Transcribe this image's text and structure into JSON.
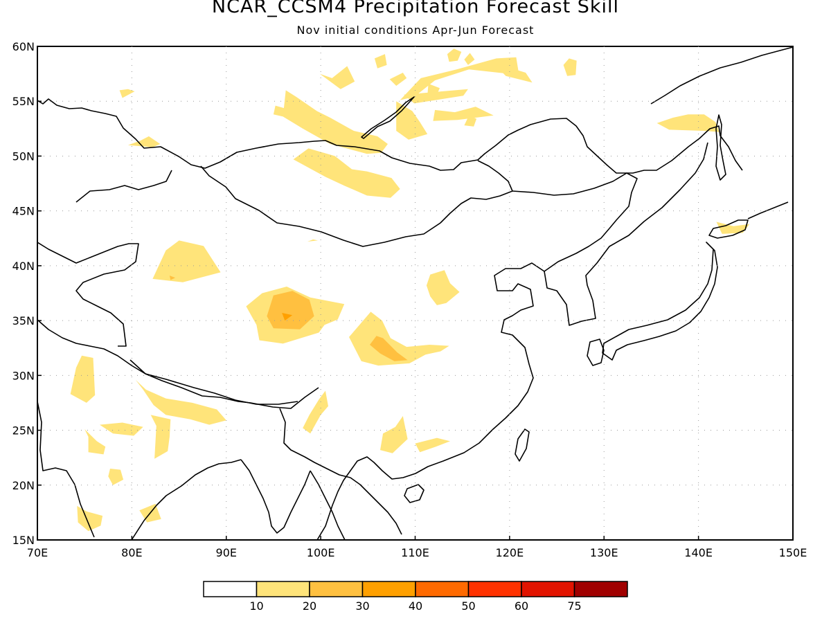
{
  "title": "NCAR_CCSM4 Precipitation Forecast Skill",
  "subtitle": "Nov initial conditions  Apr-Jun Forecast",
  "map": {
    "lon_range": [
      70,
      150
    ],
    "lat_range": [
      15,
      60
    ],
    "lon_labels": [
      "70E",
      "80E",
      "90E",
      "100E",
      "110E",
      "120E",
      "130E",
      "140E",
      "150E"
    ],
    "lat_labels": [
      "15N",
      "20N",
      "25N",
      "30N",
      "35N",
      "40N",
      "45N",
      "50N",
      "55N",
      "60N"
    ],
    "grid": "dotted"
  },
  "legend": {
    "labels": [
      "10",
      "20",
      "30",
      "40",
      "50",
      "60",
      "75"
    ],
    "colors": [
      "#ffffff",
      "#ffe47a",
      "#ffc040",
      "#ffa000",
      "#ff6a00",
      "#ff3200",
      "#e21400",
      "#a00000"
    ]
  },
  "skill_regions": [
    {
      "level": 1,
      "pts": [
        [
          87.6,
          41.8
        ],
        [
          89.4,
          39.4
        ],
        [
          85.4,
          38.5
        ],
        [
          82.2,
          38.8
        ],
        [
          83.6,
          41.4
        ],
        [
          85.0,
          42.3
        ]
      ]
    },
    {
      "level": 2,
      "pts": [
        [
          84.0,
          39.1
        ],
        [
          84.6,
          38.9
        ],
        [
          84.1,
          38.7
        ]
      ]
    },
    {
      "level": 1,
      "pts": [
        [
          93.8,
          37.5
        ],
        [
          96.4,
          38.1
        ],
        [
          98.9,
          37.1
        ],
        [
          102.5,
          36.5
        ],
        [
          101.8,
          35.1
        ],
        [
          100.4,
          34.6
        ],
        [
          99.8,
          33.9
        ],
        [
          96.0,
          32.9
        ],
        [
          93.5,
          33.2
        ],
        [
          93.2,
          34.6
        ],
        [
          92.1,
          36.3
        ]
      ]
    },
    {
      "level": 2,
      "pts": [
        [
          95.0,
          37.3
        ],
        [
          97.0,
          37.7
        ],
        [
          98.8,
          36.9
        ],
        [
          99.3,
          35.4
        ],
        [
          97.8,
          34.2
        ],
        [
          95.0,
          34.3
        ],
        [
          94.3,
          35.4
        ]
      ]
    },
    {
      "level": 3,
      "pts": [
        [
          95.9,
          35.7
        ],
        [
          97.0,
          35.5
        ],
        [
          96.2,
          35.0
        ]
      ]
    },
    {
      "level": 1,
      "pts": [
        [
          105.3,
          35.8
        ],
        [
          106.5,
          35.0
        ],
        [
          107.4,
          33.4
        ],
        [
          109.1,
          32.6
        ],
        [
          111.5,
          32.8
        ],
        [
          113.6,
          32.7
        ],
        [
          112.7,
          32.2
        ],
        [
          111.1,
          31.9
        ],
        [
          109.4,
          31.1
        ],
        [
          106.1,
          30.9
        ],
        [
          104.3,
          31.3
        ],
        [
          103.0,
          33.5
        ]
      ]
    },
    {
      "level": 2,
      "pts": [
        [
          105.9,
          33.6
        ],
        [
          106.6,
          33.4
        ],
        [
          108.1,
          32.1
        ],
        [
          109.2,
          31.4
        ],
        [
          107.8,
          31.3
        ],
        [
          106.3,
          32.0
        ],
        [
          105.2,
          32.8
        ]
      ]
    },
    {
      "level": 1,
      "pts": [
        [
          111.6,
          39.2
        ],
        [
          113.1,
          39.6
        ],
        [
          113.7,
          38.4
        ],
        [
          114.7,
          37.6
        ],
        [
          113.3,
          36.6
        ],
        [
          112.3,
          36.4
        ],
        [
          111.6,
          37.2
        ],
        [
          111.2,
          38.2
        ]
      ]
    },
    {
      "level": 1,
      "pts": [
        [
          118.6,
          58.2
        ],
        [
          119.6,
          57.3
        ],
        [
          122.4,
          56.7
        ],
        [
          121.7,
          57.6
        ],
        [
          118.0,
          58.6
        ]
      ]
    },
    {
      "level": 1,
      "pts": [
        [
          108.4,
          55.1
        ],
        [
          110.6,
          57.1
        ],
        [
          114.4,
          57.9
        ],
        [
          118.6,
          58.9
        ],
        [
          120.7,
          59.0
        ],
        [
          121.0,
          57.4
        ],
        [
          115.7,
          57.9
        ],
        [
          112.1,
          56.9
        ],
        [
          109.9,
          55.4
        ]
      ]
    },
    {
      "level": 1,
      "pts": [
        [
          112.1,
          54.2
        ],
        [
          114.2,
          54.0
        ],
        [
          116.4,
          54.5
        ],
        [
          118.3,
          53.7
        ],
        [
          114.5,
          53.3
        ],
        [
          111.9,
          53.2
        ]
      ]
    },
    {
      "level": 1,
      "pts": [
        [
          105.7,
          58.9
        ],
        [
          106.8,
          59.3
        ],
        [
          107.0,
          58.3
        ],
        [
          106.0,
          58.0
        ]
      ]
    },
    {
      "level": 1,
      "pts": [
        [
          113.4,
          59.3
        ],
        [
          114.1,
          59.8
        ],
        [
          114.9,
          59.5
        ],
        [
          114.5,
          58.7
        ],
        [
          113.6,
          58.6
        ]
      ]
    },
    {
      "level": 1,
      "pts": [
        [
          107.3,
          57.0
        ],
        [
          108.7,
          57.6
        ],
        [
          109.1,
          57.1
        ],
        [
          108.0,
          56.4
        ]
      ]
    },
    {
      "level": 1,
      "pts": [
        [
          115.2,
          58.8
        ],
        [
          115.8,
          59.4
        ],
        [
          116.3,
          58.8
        ],
        [
          115.6,
          58.3
        ]
      ]
    },
    {
      "level": 1,
      "pts": [
        [
          108.8,
          55.6
        ],
        [
          115.6,
          56.1
        ],
        [
          115.1,
          55.5
        ],
        [
          109.9,
          54.8
        ]
      ]
    },
    {
      "level": 1,
      "pts": [
        [
          108.0,
          55.0
        ],
        [
          109.7,
          54.1
        ],
        [
          110.5,
          53.1
        ],
        [
          111.3,
          52.0
        ],
        [
          109.3,
          51.5
        ],
        [
          108.0,
          52.3
        ]
      ]
    },
    {
      "level": 1,
      "pts": [
        [
          95.0,
          53.8
        ],
        [
          95.2,
          54.6
        ],
        [
          96.4,
          54.3
        ],
        [
          96.0,
          53.6
        ]
      ]
    },
    {
      "level": 1,
      "pts": [
        [
          115.2,
          52.8
        ],
        [
          115.7,
          53.7
        ],
        [
          116.5,
          53.4
        ],
        [
          116.2,
          52.7
        ]
      ]
    },
    {
      "level": 1,
      "pts": [
        [
          111.3,
          55.5
        ],
        [
          111.4,
          56.6
        ],
        [
          112.6,
          56.2
        ],
        [
          112.2,
          55.4
        ]
      ]
    },
    {
      "level": 1,
      "pts": [
        [
          125.7,
          58.3
        ],
        [
          126.3,
          58.9
        ],
        [
          127.1,
          58.7
        ],
        [
          127.0,
          57.4
        ],
        [
          126.1,
          57.3
        ]
      ]
    },
    {
      "level": 1,
      "pts": [
        [
          78.7,
          56.0
        ],
        [
          79.6,
          56.1
        ],
        [
          80.3,
          55.9
        ],
        [
          79.0,
          55.3
        ]
      ]
    },
    {
      "level": 1,
      "pts": [
        [
          79.6,
          51.0
        ],
        [
          80.9,
          51.4
        ],
        [
          81.8,
          51.8
        ],
        [
          83.0,
          51.1
        ],
        [
          82.2,
          50.8
        ]
      ]
    },
    {
      "level": 1,
      "pts": [
        [
          96.3,
          56.0
        ],
        [
          97.4,
          55.4
        ],
        [
          99.6,
          54.1
        ],
        [
          101.0,
          53.5
        ],
        [
          103.5,
          52.3
        ],
        [
          106.0,
          51.8
        ],
        [
          107.1,
          51.1
        ],
        [
          106.4,
          50.3
        ],
        [
          104.9,
          50.2
        ],
        [
          101.0,
          51.1
        ],
        [
          98.1,
          52.5
        ],
        [
          96.0,
          53.6
        ]
      ]
    },
    {
      "level": 1,
      "pts": [
        [
          97.1,
          49.7
        ],
        [
          98.7,
          50.7
        ],
        [
          101.5,
          50.0
        ],
        [
          103.3,
          48.8
        ],
        [
          104.9,
          48.6
        ],
        [
          107.5,
          48.0
        ],
        [
          108.4,
          47.0
        ],
        [
          107.4,
          46.2
        ],
        [
          104.9,
          46.4
        ],
        [
          102.5,
          47.3
        ],
        [
          100.5,
          48.1
        ]
      ]
    },
    {
      "level": 1,
      "pts": [
        [
          99.9,
          57.5
        ],
        [
          101.2,
          57.1
        ],
        [
          102.8,
          58.2
        ],
        [
          103.6,
          56.8
        ],
        [
          102.1,
          56.1
        ]
      ]
    },
    {
      "level": 1,
      "pts": [
        [
          135.6,
          53.0
        ],
        [
          137.3,
          53.5
        ],
        [
          138.9,
          53.8
        ],
        [
          140.6,
          53.8
        ],
        [
          141.8,
          53.1
        ],
        [
          142.2,
          52.2
        ],
        [
          140.5,
          52.3
        ],
        [
          136.9,
          52.4
        ]
      ]
    },
    {
      "level": 1,
      "pts": [
        [
          141.9,
          44.0
        ],
        [
          143.7,
          43.6
        ],
        [
          145.4,
          43.8
        ],
        [
          144.7,
          43.0
        ],
        [
          142.5,
          42.9
        ]
      ]
    },
    {
      "level": 1,
      "pts": [
        [
          74.1,
          30.7
        ],
        [
          74.7,
          31.8
        ],
        [
          75.9,
          31.6
        ],
        [
          76.1,
          28.2
        ],
        [
          75.2,
          27.5
        ],
        [
          73.5,
          28.3
        ]
      ]
    },
    {
      "level": 1,
      "pts": [
        [
          80.4,
          29.6
        ],
        [
          81.5,
          28.7
        ],
        [
          83.6,
          27.9
        ],
        [
          86.4,
          27.5
        ],
        [
          89.0,
          26.9
        ],
        [
          90.0,
          25.9
        ],
        [
          88.2,
          25.5
        ],
        [
          86.2,
          26.0
        ],
        [
          83.6,
          26.4
        ],
        [
          82.3,
          27.3
        ],
        [
          81.2,
          28.7
        ]
      ]
    },
    {
      "level": 1,
      "pts": [
        [
          82.0,
          26.4
        ],
        [
          84.1,
          26.0
        ],
        [
          84.0,
          24.4
        ],
        [
          83.8,
          23.1
        ],
        [
          82.4,
          22.4
        ],
        [
          82.6,
          25.4
        ]
      ]
    },
    {
      "level": 1,
      "pts": [
        [
          76.6,
          25.5
        ],
        [
          79.0,
          25.7
        ],
        [
          81.2,
          25.3
        ],
        [
          80.2,
          24.5
        ],
        [
          78.0,
          24.7
        ]
      ]
    },
    {
      "level": 1,
      "pts": [
        [
          75.0,
          25.1
        ],
        [
          76.3,
          24.0
        ],
        [
          77.2,
          23.5
        ],
        [
          77.0,
          22.8
        ],
        [
          75.4,
          23.0
        ],
        [
          75.4,
          24.4
        ]
      ]
    },
    {
      "level": 1,
      "pts": [
        [
          77.7,
          21.5
        ],
        [
          78.8,
          21.4
        ],
        [
          79.1,
          20.5
        ],
        [
          78.0,
          20.0
        ],
        [
          77.5,
          20.8
        ]
      ]
    },
    {
      "level": 1,
      "pts": [
        [
          74.2,
          18.1
        ],
        [
          75.2,
          17.6
        ],
        [
          76.9,
          17.2
        ],
        [
          76.7,
          16.3
        ],
        [
          75.4,
          15.8
        ],
        [
          74.3,
          16.6
        ]
      ]
    },
    {
      "level": 1,
      "pts": [
        [
          80.8,
          17.7
        ],
        [
          82.5,
          18.3
        ],
        [
          83.1,
          16.9
        ],
        [
          81.6,
          16.6
        ]
      ]
    },
    {
      "level": 1,
      "pts": [
        [
          99.8,
          27.8
        ],
        [
          100.5,
          28.6
        ],
        [
          100.8,
          27.2
        ],
        [
          100.0,
          26.4
        ],
        [
          98.9,
          24.7
        ],
        [
          98.1,
          25.2
        ],
        [
          98.8,
          26.4
        ]
      ]
    },
    {
      "level": 1,
      "pts": [
        [
          106.6,
          24.7
        ],
        [
          107.9,
          25.3
        ],
        [
          108.7,
          26.3
        ],
        [
          109.2,
          24.2
        ],
        [
          107.6,
          22.9
        ],
        [
          106.3,
          23.2
        ]
      ]
    },
    {
      "level": 1,
      "pts": [
        [
          110.0,
          23.8
        ],
        [
          112.3,
          24.3
        ],
        [
          113.7,
          24.0
        ],
        [
          112.2,
          23.5
        ],
        [
          110.5,
          23.0
        ]
      ]
    },
    {
      "level": 1,
      "pts": [
        [
          98.6,
          42.2
        ],
        [
          99.2,
          42.4
        ],
        [
          99.7,
          42.3
        ]
      ]
    }
  ]
}
